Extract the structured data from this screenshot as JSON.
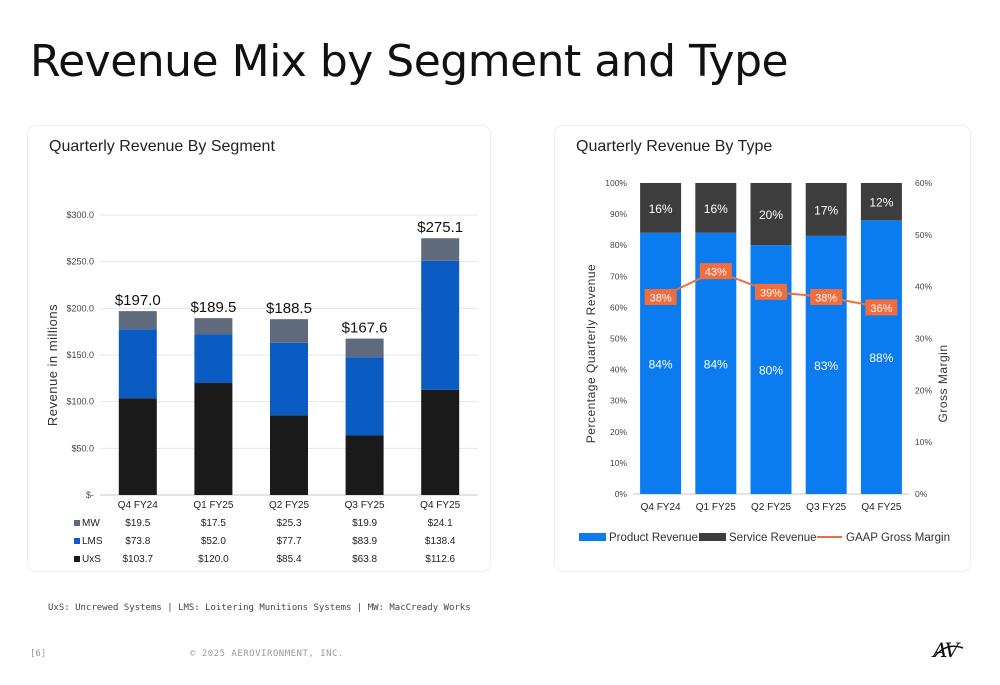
{
  "page": {
    "title": "Revenue Mix by Segment and Type",
    "footnote": "UxS: Uncrewed Systems | LMS: Loitering Munitions Systems | MW: MacCready Works",
    "page_number": "[6]",
    "copyright": "© 2025 AEROVIRONMENT, INC.",
    "logo_text": "AV"
  },
  "chart_data": [
    {
      "type": "bar",
      "stacked": true,
      "title": "Quarterly Revenue By Segment",
      "ylabel": "Revenue in millions",
      "xlabel": "",
      "ylim": [
        0,
        300
      ],
      "y_ticks": [
        "$-",
        "$50.0",
        "$100.0",
        "$150.0",
        "$200.0",
        "$250.0",
        "$300.0"
      ],
      "categories": [
        "Q4 FY24",
        "Q1 FY25",
        "Q2 FY25",
        "Q3 FY25",
        "Q4 FY25"
      ],
      "totals": [
        197.0,
        189.5,
        188.5,
        167.6,
        275.1
      ],
      "total_labels": [
        "$197.0",
        "$189.5",
        "$188.5",
        "$167.6",
        "$275.1"
      ],
      "series": [
        {
          "name": "UxS",
          "color": "#1a1a1a",
          "values": [
            103.7,
            120.0,
            85.4,
            63.8,
            112.6
          ],
          "labels": [
            "$103.7",
            "$120.0",
            "$85.4",
            "$63.8",
            "$112.6"
          ]
        },
        {
          "name": "LMS",
          "color": "#0a5cc2",
          "values": [
            73.8,
            52.0,
            77.7,
            83.9,
            138.4
          ],
          "labels": [
            "$73.8",
            "$52.0",
            "$77.7",
            "$83.9",
            "$138.4"
          ]
        },
        {
          "name": "MW",
          "color": "#5f6b7c",
          "values": [
            19.5,
            17.5,
            25.3,
            19.9,
            24.1
          ],
          "labels": [
            "$19.5",
            "$17.5",
            "$25.3",
            "$19.9",
            "$24.1"
          ]
        }
      ],
      "grid": true,
      "legend": "data table below chart"
    },
    {
      "type": "bar",
      "stacked": true,
      "title": "Quarterly Revenue By Type",
      "ylabel": "Percentage Quarterly  Revenue",
      "y2label": "Gross Margin",
      "ylim": [
        0,
        100
      ],
      "y2lim": [
        0,
        60
      ],
      "y_ticks": [
        "0%",
        "10%",
        "20%",
        "30%",
        "40%",
        "50%",
        "60%",
        "70%",
        "80%",
        "90%",
        "100%"
      ],
      "y2_ticks": [
        "0%",
        "10%",
        "20%",
        "30%",
        "40%",
        "50%",
        "60%"
      ],
      "categories": [
        "Q4 FY24",
        "Q1 FY25",
        "Q2 FY25",
        "Q3 FY25",
        "Q4 FY25"
      ],
      "series": [
        {
          "name": "Product Revenue",
          "color": "#0a7cf0",
          "values": [
            84,
            84,
            80,
            83,
            88
          ],
          "labels": [
            "84%",
            "84%",
            "80%",
            "83%",
            "88%"
          ]
        },
        {
          "name": "Service Revenue",
          "color": "#3d3d3d",
          "values": [
            16,
            16,
            20,
            17,
            12
          ],
          "labels": [
            "16%",
            "16%",
            "20%",
            "17%",
            "12%"
          ]
        }
      ],
      "line_series": {
        "name": "GAAP Gross Margin",
        "color": "#f26d3d",
        "axis": "right",
        "values": [
          38,
          43,
          39,
          38,
          36
        ],
        "labels": [
          "38%",
          "43%",
          "39%",
          "38%",
          "36%"
        ]
      },
      "grid": false,
      "legend": "bottom"
    }
  ]
}
